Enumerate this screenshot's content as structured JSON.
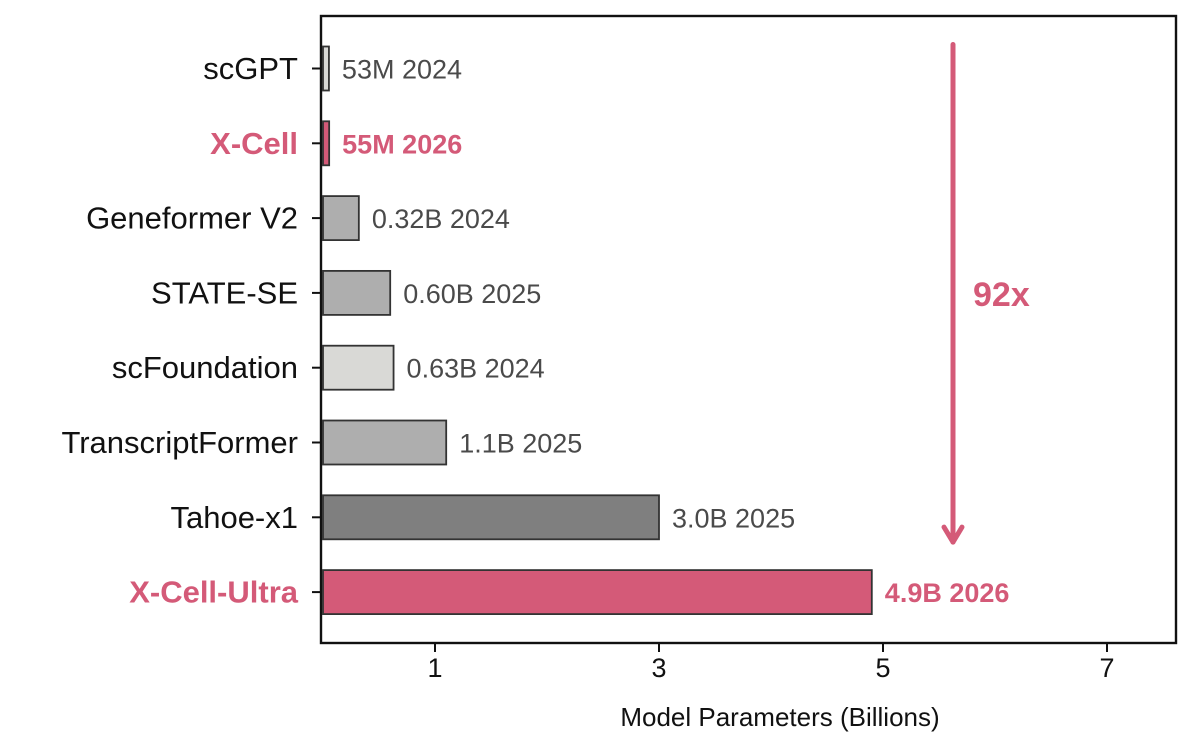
{
  "chart_data": {
    "type": "bar",
    "orientation": "horizontal",
    "title": "",
    "xlabel": "Model Parameters (Billions)",
    "ylabel": "",
    "xlim": [
      0,
      7.6
    ],
    "xticks": [
      1,
      3,
      5,
      7
    ],
    "grid": false,
    "categories": [
      "scGPT",
      "X-Cell",
      "Geneformer V2",
      "STATE-SE",
      "scFoundation",
      "TranscriptFormer",
      "Tahoe-x1",
      "X-Cell-Ultra"
    ],
    "values": [
      0.053,
      0.055,
      0.32,
      0.6,
      0.63,
      1.1,
      3.0,
      4.9
    ],
    "data_labels": [
      "53M 2024",
      "55M 2026",
      "0.32B 2024",
      "0.60B 2025",
      "0.63B 2024",
      "1.1B 2025",
      "3.0B 2025",
      "4.9B 2026"
    ],
    "bar_colors": [
      "#d9d9d6",
      "#d45a78",
      "#aeaeae",
      "#aeaeae",
      "#d9d9d6",
      "#aeaeae",
      "#7f7f7f",
      "#d45a78"
    ],
    "highlighted": [
      false,
      true,
      false,
      false,
      false,
      false,
      false,
      true
    ],
    "annotation": {
      "text": "92x",
      "from_category": "scGPT",
      "to_category": "X-Cell-Ultra",
      "direction": "down"
    }
  },
  "colors": {
    "highlight": "#d45a78",
    "label_default": "#111111",
    "data_label_default": "#4a4a4a",
    "bar_edge": "#333333",
    "axis": "#111111"
  }
}
